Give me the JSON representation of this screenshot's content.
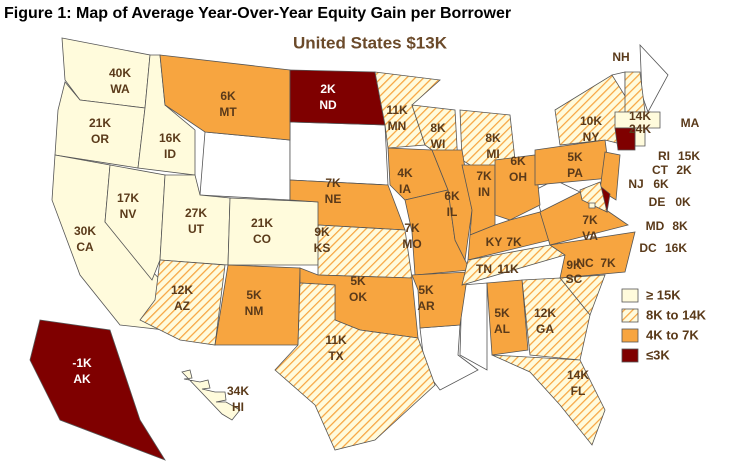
{
  "title": "Figure 1: Map of Average Year-Over-Year Equity Gain per Borrower",
  "subtitle": "United States $13K",
  "legend": [
    {
      "label": "≥ 15K",
      "color": "#fffbdc",
      "hatched": false
    },
    {
      "label": "8K to 14K",
      "color": "#f7a540",
      "hatched": true
    },
    {
      "label": "4K to 7K",
      "color": "#f7a540",
      "hatched": false
    },
    {
      "label": "≤3K",
      "color": "#7f0000",
      "hatched": false
    }
  ],
  "states": [
    {
      "abbr": "WA",
      "gain": "40K",
      "bin": 0
    },
    {
      "abbr": "OR",
      "gain": "21K",
      "bin": 0
    },
    {
      "abbr": "CA",
      "gain": "30K",
      "bin": 0
    },
    {
      "abbr": "NV",
      "gain": "17K",
      "bin": 0
    },
    {
      "abbr": "ID",
      "gain": "16K",
      "bin": 0
    },
    {
      "abbr": "UT",
      "gain": "27K",
      "bin": 0
    },
    {
      "abbr": "CO",
      "gain": "21K",
      "bin": 0
    },
    {
      "abbr": "MT",
      "gain": "6K",
      "bin": 2
    },
    {
      "abbr": "ND",
      "gain": "2K",
      "bin": 3
    },
    {
      "abbr": "MN",
      "gain": "11K",
      "bin": 1
    },
    {
      "abbr": "WI",
      "gain": "8K",
      "bin": 1
    },
    {
      "abbr": "MI",
      "gain": "8K",
      "bin": 1
    },
    {
      "abbr": "NE",
      "gain": "7K",
      "bin": 2
    },
    {
      "abbr": "IA",
      "gain": "4K",
      "bin": 2
    },
    {
      "abbr": "KS",
      "gain": "9K",
      "bin": 1
    },
    {
      "abbr": "MO",
      "gain": "7K",
      "bin": 2
    },
    {
      "abbr": "IL",
      "gain": "6K",
      "bin": 2
    },
    {
      "abbr": "IN",
      "gain": "7K",
      "bin": 2
    },
    {
      "abbr": "OH",
      "gain": "6K",
      "bin": 2
    },
    {
      "abbr": "PA",
      "gain": "5K",
      "bin": 2
    },
    {
      "abbr": "NY",
      "gain": "10K",
      "bin": 1
    },
    {
      "abbr": "AZ",
      "gain": "12K",
      "bin": 1
    },
    {
      "abbr": "NM",
      "gain": "5K",
      "bin": 2
    },
    {
      "abbr": "OK",
      "gain": "5K",
      "bin": 2
    },
    {
      "abbr": "AR",
      "gain": "5K",
      "bin": 2
    },
    {
      "abbr": "TX",
      "gain": "11K",
      "bin": 1
    },
    {
      "abbr": "KY",
      "gain": "7K",
      "bin": 2
    },
    {
      "abbr": "TN",
      "gain": "11K",
      "bin": 1
    },
    {
      "abbr": "VA",
      "gain": "7K",
      "bin": 2
    },
    {
      "abbr": "NC",
      "gain": "7K",
      "bin": 2
    },
    {
      "abbr": "SC",
      "gain": "9K",
      "bin": 1
    },
    {
      "abbr": "GA",
      "gain": "12K",
      "bin": 1
    },
    {
      "abbr": "AL",
      "gain": "5K",
      "bin": 2
    },
    {
      "abbr": "FL",
      "gain": "14K",
      "bin": 1
    },
    {
      "abbr": "NH",
      "gain": "14K",
      "bin": 1
    },
    {
      "abbr": "MA",
      "gain": "24K",
      "bin": 0
    },
    {
      "abbr": "RI",
      "gain": "15K",
      "bin": 0
    },
    {
      "abbr": "CT",
      "gain": "2K",
      "bin": 3
    },
    {
      "abbr": "NJ",
      "gain": "6K",
      "bin": 2
    },
    {
      "abbr": "DE",
      "gain": "0K",
      "bin": 3
    },
    {
      "abbr": "MD",
      "gain": "8K",
      "bin": 1
    },
    {
      "abbr": "DC",
      "gain": "16K",
      "bin": 0
    },
    {
      "abbr": "AK",
      "gain": "-1K",
      "bin": 3
    },
    {
      "abbr": "HI",
      "gain": "34K",
      "bin": 0
    }
  ]
}
